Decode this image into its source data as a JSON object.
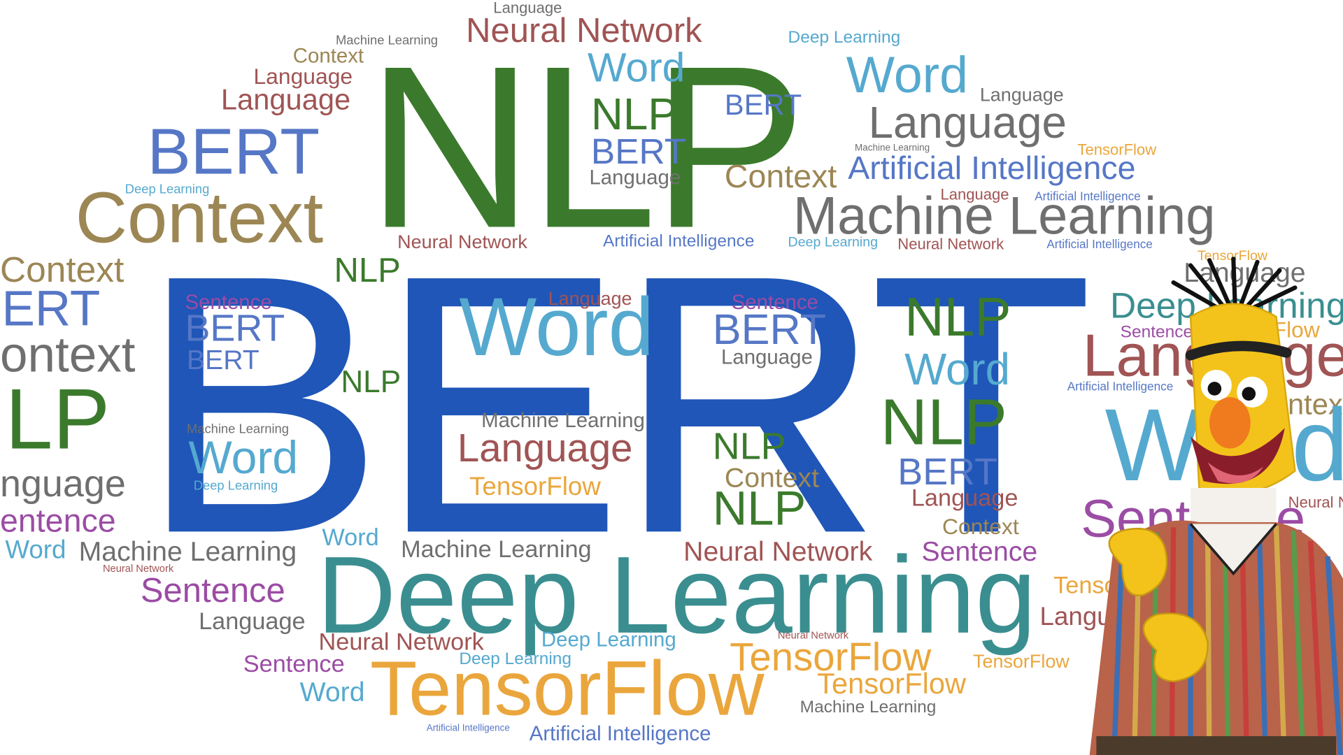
{
  "words": {
    "bert_big": "BERT",
    "nlp_big": "NLP",
    "deep_learning_big": "Deep Learning",
    "tensorflow_big": "TensorFlow",
    "context_big": "Context",
    "machine_learning_big": "Machine Learning",
    "language_big": "Language",
    "word_big": "Word",
    "bert_left": "BERT",
    "neural_network_top": "Neural Network",
    "word_top": "Word",
    "word_top_right": "Word",
    "language_right": "Language",
    "artificial_intelligence_right": "Artificial Intelligence",
    "language_top": "Language",
    "machine_learning_top": "Machine Learning",
    "context_top": "Context",
    "language_top2": "Language",
    "language_top3": "Language",
    "deep_learning_top": "Deep Learning",
    "language_tr": "Language",
    "nlp_mid": "NLP",
    "bert_mid": "BERT",
    "language_mid": "Language",
    "bert_mid2": "BERT",
    "context_mid": "Context",
    "deep_learning_small": "Deep Learning",
    "machine_learning_small": "Machine Learning",
    "tensorflow_small": "TensorFlow",
    "language_small2": "Language",
    "artificial_intelligence_small": "Artificial Intelligence",
    "neural_network_mid": "Neural Network",
    "artificial_intelligence_mid": "Artificial Intelligence",
    "deep_learning_mid": "Deep Learning",
    "neural_network_mid2": "Neural Network",
    "artificial_intelligence_mid2": "Artificial Intelligence",
    "tensorflow_mid": "TensorFlow",
    "context_left": "Context",
    "nlp_left1": "NLP",
    "bert_edge": "ERT",
    "context_edge": "ontext",
    "nlp_edge": "LP",
    "language_edge": "nguage",
    "sentence_edge": "entence",
    "word_left": "Word",
    "machine_learning_left": "Machine Learning",
    "neural_network_tiny": "Neural Network",
    "sentence_left": "Sentence",
    "language_left": "Language",
    "sentence_left2": "Sentence",
    "word_left2": "Word",
    "sentence_b1": "Sentence",
    "bert_b1": "BERT",
    "bert_b2": "BERT",
    "nlp_b1": "NLP",
    "machine_learning_b": "Machine Learning",
    "word_b": "Word",
    "deep_learning_b": "Deep Learning",
    "language_e": "Language",
    "word_e": "Word",
    "machine_learning_e": "Machine Learning",
    "language_e2": "Language",
    "tensorflow_e": "TensorFlow",
    "sentence_r": "Sentence",
    "bert_r": "BERT",
    "language_r": "Language",
    "nlp_r1": "NLP",
    "word_r1": "Word",
    "nlp_r2": "NLP",
    "nlp_r3": "NLP",
    "context_r": "Context",
    "nlp_r4": "NLP",
    "bert_r2": "BERT",
    "language_r2": "Language",
    "context_r2": "Context",
    "word_lower": "Word",
    "machine_learning_lower": "Machine Learning",
    "neural_network_lower": "Neural Network",
    "sentence_lower": "Sentence",
    "neural_network_bottom": "Neural Network",
    "deep_learning_bottom": "Deep Learning",
    "deep_learning_bottom2": "Deep Learning",
    "neural_network_tiny2": "Neural Network",
    "tensorflow_bottom2": "TensorFlow",
    "tensorflow_bottom3": "TensorFlow",
    "tensorflow_bottom4": "TensorFlow",
    "machine_learning_bottom": "Machine Learning",
    "artificial_intelligence_tiny": "Artificial Intelligence",
    "artificial_intelligence_bottom": "Artificial Intelligence",
    "sentence_bottom": "Sentence",
    "word_bottom": "Word",
    "tensorflow_far": "TensorFlow",
    "language_far": "Language",
    "deep_learning_far": "Deep Learning",
    "sentence_far": "Sentence",
    "tensorflow_far2": "TensorFlow",
    "language_far2": "Language",
    "artificial_intelligence_far": "Artificial Intelligence",
    "context_far": "Context",
    "word_far": "Word",
    "sentence_far2": "Sentence",
    "neural_network_far": "Neural Network",
    "language_far3": "Language"
  },
  "colors": {
    "green": "#3b7a2c",
    "blue": "#1f56b8",
    "light_blue": "#55a9cf",
    "grey": "#6f6f6f",
    "brown": "#a05454",
    "tan": "#9c8654",
    "teal": "#3a8e90",
    "orange": "#eaa63c",
    "purple": "#9b4ca4"
  },
  "figure": {
    "character": "puppet-character"
  }
}
